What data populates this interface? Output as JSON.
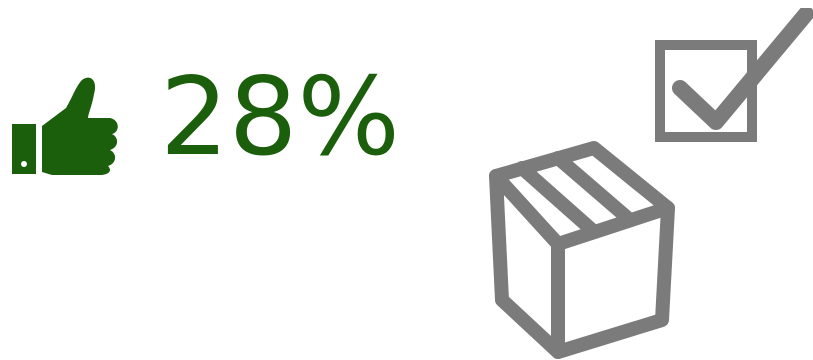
{
  "stat": {
    "value": "28%",
    "icon": "thumbs-up-icon",
    "color": "#1b5e0b"
  },
  "graphics": {
    "checkbox_icon": "checked-box-icon",
    "package_icon": "package-box-icon",
    "icon_color": "#7b7b7b"
  }
}
